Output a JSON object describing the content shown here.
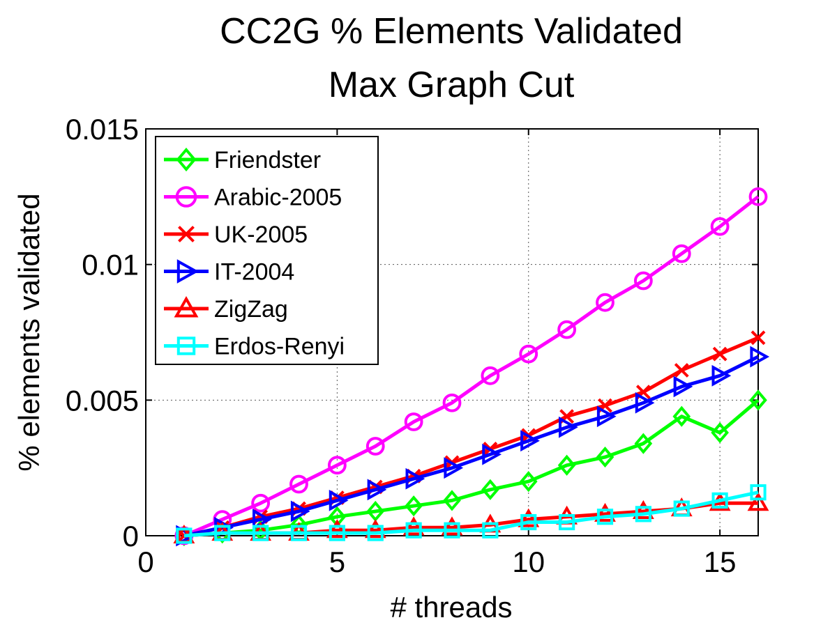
{
  "chart_data": {
    "type": "line",
    "title": "CC2G % Elements Validated",
    "subtitle": "Max Graph Cut",
    "xlabel": "# threads",
    "ylabel": "% elements validated",
    "xlim": [
      0,
      16
    ],
    "ylim": [
      0,
      0.015
    ],
    "xticks": [
      0,
      5,
      10,
      15
    ],
    "xtick_labels": [
      "0",
      "5",
      "10",
      "15"
    ],
    "yticks": [
      0,
      0.005,
      0.01,
      0.015
    ],
    "ytick_labels": [
      "0",
      "0.005",
      "0.01",
      "0.015"
    ],
    "grid": true,
    "legend_position": "top-left",
    "x": [
      1,
      2,
      3,
      4,
      5,
      6,
      7,
      8,
      9,
      10,
      11,
      12,
      13,
      14,
      15,
      16
    ],
    "series": [
      {
        "name": "Friendster",
        "color": "#00ff00",
        "marker": "diamond",
        "values": [
          0,
          0.0001,
          0.0002,
          0.0004,
          0.0007,
          0.0009,
          0.0011,
          0.0013,
          0.0017,
          0.002,
          0.0026,
          0.0029,
          0.0034,
          0.0044,
          0.0038,
          0.005
        ]
      },
      {
        "name": "Arabic-2005",
        "color": "#ff00ff",
        "marker": "circle",
        "values": [
          0,
          0.0006,
          0.0012,
          0.0019,
          0.0026,
          0.0033,
          0.0042,
          0.0049,
          0.0059,
          0.0067,
          0.0076,
          0.0086,
          0.0094,
          0.0104,
          0.0114,
          0.0125
        ]
      },
      {
        "name": "UK-2005",
        "color": "#ff0000",
        "marker": "x",
        "values": [
          0,
          0.0003,
          0.0007,
          0.001,
          0.0014,
          0.0018,
          0.0022,
          0.0027,
          0.0032,
          0.0037,
          0.0044,
          0.0048,
          0.0053,
          0.0061,
          0.0067,
          0.0073
        ]
      },
      {
        "name": "IT-2004",
        "color": "#0000ff",
        "marker": "triangle-right",
        "values": [
          0,
          0.0003,
          0.0006,
          0.0009,
          0.0013,
          0.0017,
          0.0021,
          0.0025,
          0.003,
          0.0035,
          0.004,
          0.0044,
          0.0049,
          0.0055,
          0.0059,
          0.0066
        ]
      },
      {
        "name": "ZigZag",
        "color": "#ff0000",
        "marker": "triangle-up",
        "values": [
          0,
          0.0001,
          0.0001,
          0.0001,
          0.0002,
          0.0002,
          0.0003,
          0.0003,
          0.0004,
          0.0006,
          0.0007,
          0.0008,
          0.0009,
          0.001,
          0.0012,
          0.0012
        ]
      },
      {
        "name": "Erdos-Renyi",
        "color": "#00ffff",
        "marker": "square",
        "values": [
          0,
          0.0001,
          0.0001,
          0.0001,
          0.0001,
          0.0001,
          0.0002,
          0.0002,
          0.0002,
          0.0005,
          0.0005,
          0.0007,
          0.0008,
          0.001,
          0.0013,
          0.0016
        ]
      }
    ]
  }
}
